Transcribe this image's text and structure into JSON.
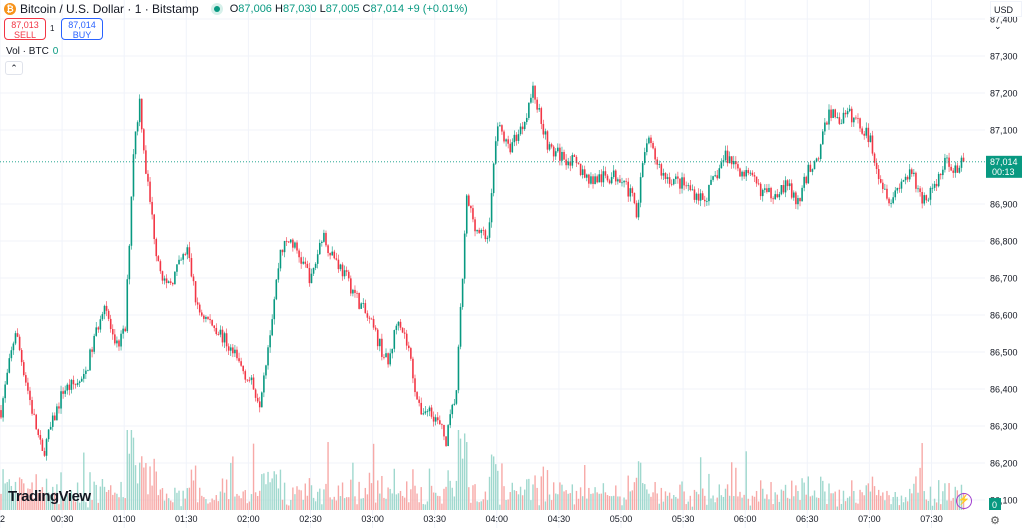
{
  "header": {
    "symbol_title": "Bitcoin / U.S. Dollar · 1 · Bitstamp",
    "open_label": "O",
    "open": "87,006",
    "high_label": "H",
    "high": "87,030",
    "low_label": "L",
    "low": "87,005",
    "close_label": "C",
    "close": "87,014",
    "change": "+9 (+0.01%)",
    "coin_icon": "bitcoin-icon"
  },
  "trade": {
    "sell_price": "87,013",
    "sell_label": "SELL",
    "buy_price": "87,014",
    "buy_label": "BUY",
    "spread": "1"
  },
  "volume_legend": {
    "label": "Vol · BTC",
    "value": "0"
  },
  "currency": "USD ⌄",
  "logo": "TradingView",
  "last_price": {
    "price": "87,014",
    "countdown": "00:13",
    "volume": "0"
  },
  "colors": {
    "up": "#089981",
    "down": "#f23645",
    "up_vol": "#9fd8ce",
    "down_vol": "#f7a9a7",
    "grid": "#f0f3fa"
  },
  "chart_data": {
    "type": "candlestick",
    "x_ticks": [
      "2",
      "00:30",
      "01:00",
      "01:30",
      "02:00",
      "02:30",
      "03:00",
      "03:30",
      "04:00",
      "04:30",
      "05:00",
      "05:30",
      "06:00",
      "06:30",
      "07:00",
      "07:30"
    ],
    "y_ticks": [
      "87,400",
      "87,300",
      "87,200",
      "87,100",
      "86,900",
      "86,800",
      "86,700",
      "86,600",
      "86,500",
      "86,400",
      "86,300",
      "86,200",
      "86,100"
    ],
    "ylim": [
      86080,
      87430
    ],
    "interval": "1 minute",
    "close_path": [
      [
        "00:00",
        86343
      ],
      [
        "00:07",
        86559
      ],
      [
        "00:15",
        86343
      ],
      [
        "00:20",
        86222
      ],
      [
        "00:30",
        86397
      ],
      [
        "00:40",
        86424
      ],
      [
        "00:50",
        86641
      ],
      [
        "00:55",
        86505
      ],
      [
        "01:00",
        86559
      ],
      [
        "01:04",
        87046
      ],
      [
        "01:07",
        87181
      ],
      [
        "01:10",
        86992
      ],
      [
        "01:15",
        86776
      ],
      [
        "01:20",
        86668
      ],
      [
        "01:30",
        86776
      ],
      [
        "01:35",
        86614
      ],
      [
        "01:45",
        86559
      ],
      [
        "02:00",
        86424
      ],
      [
        "02:05",
        86370
      ],
      [
        "02:10",
        86559
      ],
      [
        "02:15",
        86776
      ],
      [
        "02:20",
        86803
      ],
      [
        "02:25",
        86749
      ],
      [
        "02:30",
        86695
      ],
      [
        "02:35",
        86816
      ],
      [
        "02:42",
        86749
      ],
      [
        "02:50",
        86668
      ],
      [
        "03:00",
        86559
      ],
      [
        "03:07",
        86465
      ],
      [
        "03:12",
        86600
      ],
      [
        "03:17",
        86505
      ],
      [
        "03:22",
        86343
      ],
      [
        "03:28",
        86343
      ],
      [
        "03:35",
        86262
      ],
      [
        "03:40",
        86397
      ],
      [
        "03:45",
        86911
      ],
      [
        "03:50",
        86830
      ],
      [
        "03:55",
        86803
      ],
      [
        "04:00",
        87127
      ],
      [
        "04:05",
        87046
      ],
      [
        "04:12",
        87114
      ],
      [
        "04:17",
        87208
      ],
      [
        "04:25",
        87046
      ],
      [
        "04:35",
        87019
      ],
      [
        "04:45",
        86965
      ],
      [
        "05:00",
        86978
      ],
      [
        "05:07",
        86884
      ],
      [
        "05:12",
        87073
      ],
      [
        "05:20",
        86978
      ],
      [
        "05:30",
        86951
      ],
      [
        "05:40",
        86911
      ],
      [
        "05:50",
        87032
      ],
      [
        "06:00",
        86978
      ],
      [
        "06:10",
        86924
      ],
      [
        "06:20",
        86951
      ],
      [
        "06:25",
        86897
      ],
      [
        "06:30",
        86992
      ],
      [
        "06:35",
        87032
      ],
      [
        "06:40",
        87154
      ],
      [
        "06:45",
        87127
      ],
      [
        "06:50",
        87141
      ],
      [
        "06:55",
        87114
      ],
      [
        "07:00",
        87073
      ],
      [
        "07:05",
        86965
      ],
      [
        "07:10",
        86911
      ],
      [
        "07:15",
        86965
      ],
      [
        "07:20",
        86978
      ],
      [
        "07:25",
        86911
      ],
      [
        "07:30",
        86938
      ],
      [
        "07:37",
        87019
      ],
      [
        "07:42",
        86992
      ],
      [
        "07:45",
        87014
      ]
    ],
    "last_price": 87014
  }
}
